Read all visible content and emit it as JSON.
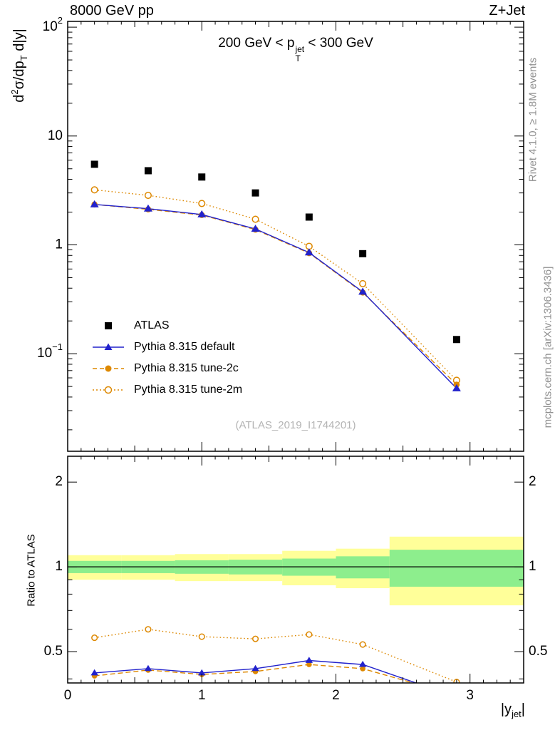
{
  "header": {
    "left": "8000 GeV pp",
    "right": "Z+Jet"
  },
  "title": {
    "p1": "200 GeV < p",
    "sup": "jet",
    "sub": "T",
    "p2": " < 300 GeV"
  },
  "axis_titles": {
    "y_main": {
      "p1": "d",
      "sup": "2",
      "p2": "σ/dp",
      "sub": "T",
      "p3": " d|y|"
    },
    "y_ratio": "Ratio to ATLAS",
    "x": {
      "p1": "|y",
      "sub": "jet",
      "p2": "|"
    }
  },
  "side_notes": {
    "rivet": "Rivet 4.1.0, ≥ 1.8M events",
    "mcplots": "mcplots.cern.ch [arXiv:1306.3436]"
  },
  "watermark": "(ATLAS_2019_I1744201)",
  "legend": {
    "items": [
      {
        "label": "ATLAS"
      },
      {
        "label": "Pythia 8.315 default"
      },
      {
        "label": "Pythia 8.315 tune-2c"
      },
      {
        "label": "Pythia 8.315 tune-2m"
      }
    ]
  },
  "colors": {
    "atlas": "#000000",
    "pythia_default": "#2222cc",
    "pythia_tunes": "#dd8800",
    "band_yellow": "#ffff99",
    "band_green": "#8dee8d",
    "gray_text": "#909090",
    "watermark_gray": "#b4b4b4"
  },
  "chart_data": {
    "type": "line",
    "title": "200 GeV < pT(jet) < 300 GeV",
    "xlabel": "|y_jet|",
    "ylabel": "d2sigma/dpT d|y|",
    "ratio_label": "Ratio to ATLAS",
    "x_axis": {
      "min": 0,
      "max": 3.4,
      "ticks": [
        {
          "v": 0,
          "label": "0"
        },
        {
          "v": 1,
          "label": "1"
        },
        {
          "v": 2,
          "label": "2"
        },
        {
          "v": 3,
          "label": "3"
        }
      ]
    },
    "main_axis": {
      "scale": "log",
      "min": 0.0127,
      "max": 113,
      "ticks": [
        {
          "v": 100,
          "base": "10",
          "exp": "2"
        },
        {
          "v": 10,
          "label": "10"
        },
        {
          "v": 1,
          "label": "1"
        },
        {
          "v": 0.1,
          "base": "10",
          "exp": "−1"
        }
      ]
    },
    "ratio_axis": {
      "scale": "log",
      "min": 0.387,
      "max": 2.47,
      "ticks": [
        {
          "v": 2,
          "label": "2"
        },
        {
          "v": 1,
          "label": "1"
        },
        {
          "v": 0.5,
          "label": "0.5"
        }
      ]
    },
    "x": [
      0.2,
      0.6,
      1.0,
      1.4,
      1.8,
      2.2,
      2.9
    ],
    "series": [
      {
        "name": "ATLAS",
        "marker": "square",
        "color_key": "atlas",
        "values": [
          5.5,
          4.8,
          4.2,
          3.0,
          1.8,
          0.83,
          0.135
        ]
      },
      {
        "name": "Pythia 8.315 default",
        "marker": "triangle",
        "line": "solid",
        "color_key": "pythia_default",
        "values": [
          2.35,
          2.15,
          1.9,
          1.4,
          0.85,
          0.37,
          0.048
        ],
        "ratio_to_atlas": [
          0.42,
          0.435,
          0.42,
          0.435,
          0.465,
          0.45,
          0.345
        ]
      },
      {
        "name": "Pythia 8.315 tune-2c",
        "marker": "circle",
        "line": "dashed",
        "color_key": "pythia_tunes",
        "values": [
          2.35,
          2.12,
          1.88,
          1.38,
          0.84,
          0.365,
          0.052
        ],
        "ratio_to_atlas": [
          0.41,
          0.43,
          0.415,
          0.425,
          0.45,
          0.435,
          0.35
        ]
      },
      {
        "name": "Pythia 8.315 tune-2m",
        "marker": "circle-open",
        "line": "dotted",
        "color_key": "pythia_tunes",
        "values": [
          3.2,
          2.85,
          2.4,
          1.72,
          0.97,
          0.44,
          0.057
        ],
        "ratio_to_atlas": [
          0.56,
          0.6,
          0.565,
          0.555,
          0.575,
          0.53,
          0.39
        ]
      }
    ],
    "ratio_bands": {
      "bin_edges": [
        0,
        0.4,
        0.8,
        1.2,
        1.6,
        2.0,
        2.4,
        3.4
      ],
      "yellow": [
        [
          0.9,
          1.1
        ],
        [
          0.9,
          1.1
        ],
        [
          0.89,
          1.11
        ],
        [
          0.89,
          1.11
        ],
        [
          0.86,
          1.14
        ],
        [
          0.84,
          1.16
        ],
        [
          0.73,
          1.28
        ]
      ],
      "green": [
        [
          0.95,
          1.05
        ],
        [
          0.95,
          1.05
        ],
        [
          0.945,
          1.055
        ],
        [
          0.94,
          1.06
        ],
        [
          0.93,
          1.07
        ],
        [
          0.91,
          1.09
        ],
        [
          0.85,
          1.15
        ]
      ]
    }
  }
}
